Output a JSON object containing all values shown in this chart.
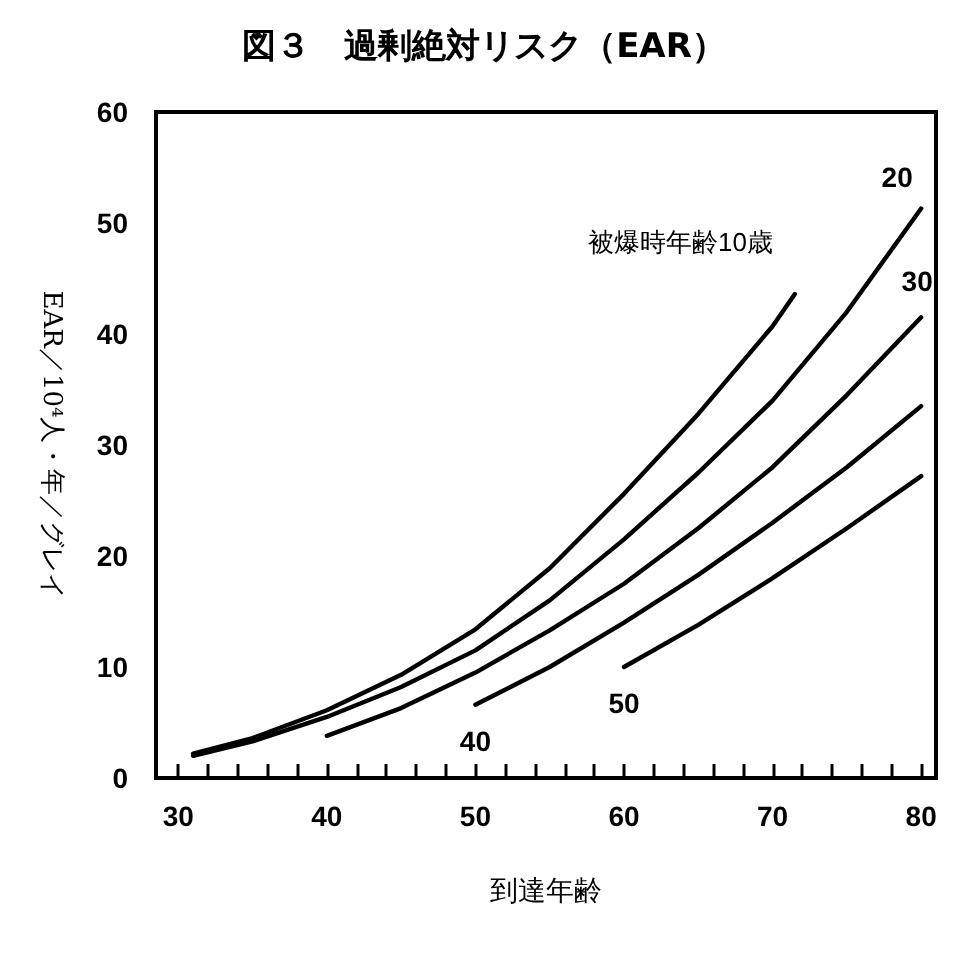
{
  "chart_data": {
    "type": "line",
    "title": "図３　過剰絶対リスク（EAR）",
    "xlabel": "到達年齢",
    "ylabel": "EAR／10⁴人・年／グレイ",
    "xlim": [
      28.5,
      81
    ],
    "ylim": [
      0,
      60
    ],
    "xticks": [
      30,
      {
        "value": 32,
        "label": null
      },
      {
        "value": 34,
        "label": null
      },
      {
        "value": 36,
        "label": null
      },
      {
        "value": 38,
        "label": null
      },
      40,
      {
        "value": 42,
        "label": null
      },
      {
        "value": 44,
        "label": null
      },
      {
        "value": 46,
        "label": null
      },
      {
        "value": 48,
        "label": null
      },
      50,
      {
        "value": 52,
        "label": null
      },
      {
        "value": 54,
        "label": null
      },
      {
        "value": 56,
        "label": null
      },
      {
        "value": 58,
        "label": null
      },
      60,
      {
        "value": 62,
        "label": null
      },
      {
        "value": 64,
        "label": null
      },
      {
        "value": 66,
        "label": null
      },
      {
        "value": 68,
        "label": null
      },
      70,
      {
        "value": 72,
        "label": null
      },
      {
        "value": 74,
        "label": null
      },
      {
        "value": 76,
        "label": null
      },
      {
        "value": 78,
        "label": null
      },
      80
    ],
    "yticks": [
      0,
      10,
      20,
      30,
      40,
      50,
      60
    ],
    "grid": false,
    "legend": false,
    "marker": "none",
    "line_style": "solid",
    "series": [
      {
        "name": "被爆時年齢10歳",
        "color": "#000000",
        "x": [
          31,
          35,
          40,
          45,
          50,
          55,
          60,
          65,
          70,
          71.5
        ],
        "values": [
          2.2,
          3.6,
          6.1,
          9.3,
          13.4,
          18.9,
          25.6,
          32.8,
          40.7,
          43.6
        ]
      },
      {
        "name": "20",
        "color": "#000000",
        "x": [
          31,
          35,
          40,
          45,
          50,
          55,
          60,
          65,
          70,
          75,
          80
        ],
        "values": [
          2.0,
          3.3,
          5.5,
          8.2,
          11.5,
          16,
          21.5,
          27.5,
          34,
          42,
          51.3
        ]
      },
      {
        "name": "30",
        "color": "#000000",
        "x": [
          40,
          45,
          50,
          55,
          60,
          65,
          70,
          75,
          80
        ],
        "values": [
          3.8,
          6.3,
          9.5,
          13.3,
          17.5,
          22.5,
          28,
          34.5,
          41.5
        ]
      },
      {
        "name": "40",
        "color": "#000000",
        "x": [
          50,
          55,
          60,
          65,
          70,
          75,
          80
        ],
        "values": [
          6.6,
          10,
          14,
          18.3,
          23,
          28,
          33.5
        ]
      },
      {
        "name": "50",
        "color": "#000000",
        "x": [
          60,
          65,
          70,
          75,
          80
        ],
        "values": [
          10,
          13.8,
          18,
          22.5,
          27.2
        ]
      }
    ]
  }
}
